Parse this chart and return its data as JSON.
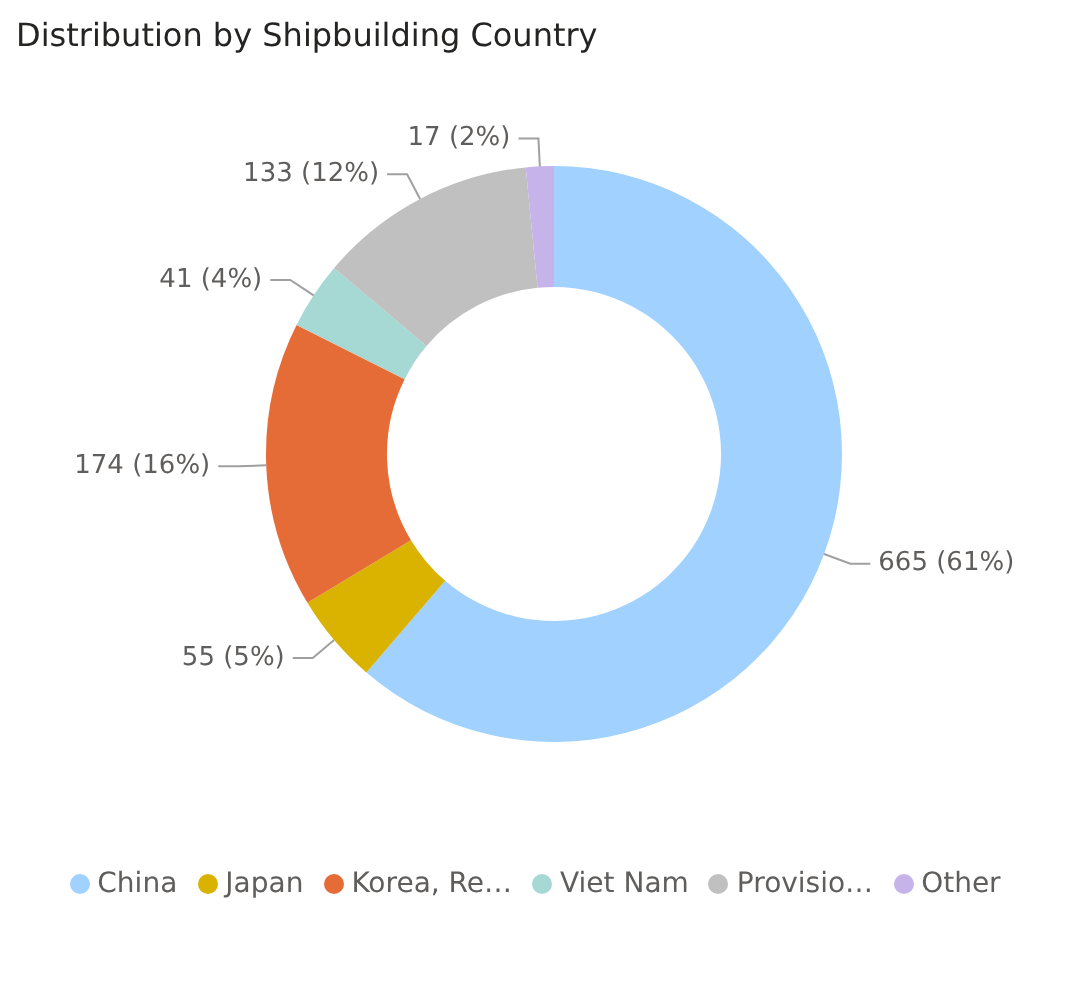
{
  "chart_data": {
    "type": "donut",
    "title": "Distribution by Shipbuilding Country",
    "categories": [
      "China",
      "Japan",
      "Korea, Re…",
      "Viet Nam",
      "Provisio…",
      "Other"
    ],
    "values": [
      665,
      55,
      174,
      41,
      133,
      17
    ],
    "colors": [
      "#a0d1ff",
      "#d9b300",
      "#e66c37",
      "#a6d8d4",
      "#c0c0c0",
      "#c5b3ea"
    ],
    "value_labels": [
      "665 (61%)",
      "55 (5%)",
      "174 (16%)",
      "41 (4%)",
      "133 (12%)",
      "17 (2%)"
    ],
    "legend": "bottom"
  }
}
